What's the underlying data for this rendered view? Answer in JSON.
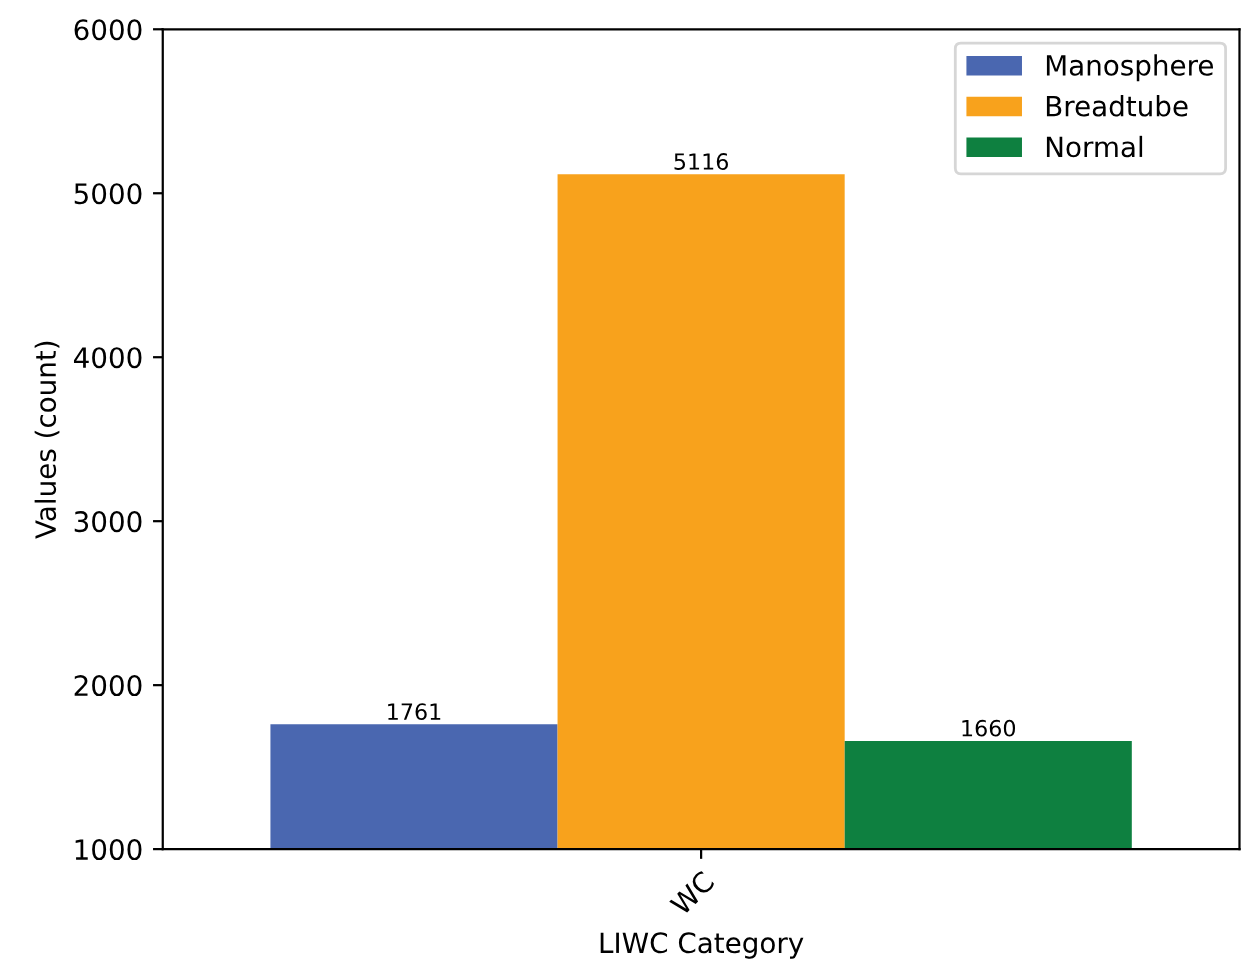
{
  "chart_data": {
    "type": "bar",
    "categories": [
      "WC"
    ],
    "xlabel": "LIWC Category",
    "ylabel": "Values (count)",
    "series": [
      {
        "name": "Manosphere",
        "color": "#4a67b0",
        "values": [
          1761
        ]
      },
      {
        "name": "Breadtube",
        "color": "#f8a21c",
        "values": [
          5116
        ]
      },
      {
        "name": "Normal",
        "color": "#0e8040",
        "values": [
          1660
        ]
      }
    ],
    "ylim": [
      1000,
      6000
    ],
    "yticks": [
      1000,
      2000,
      3000,
      4000,
      5000,
      6000
    ],
    "data_labels": true,
    "legend": "top right",
    "grid": false
  }
}
